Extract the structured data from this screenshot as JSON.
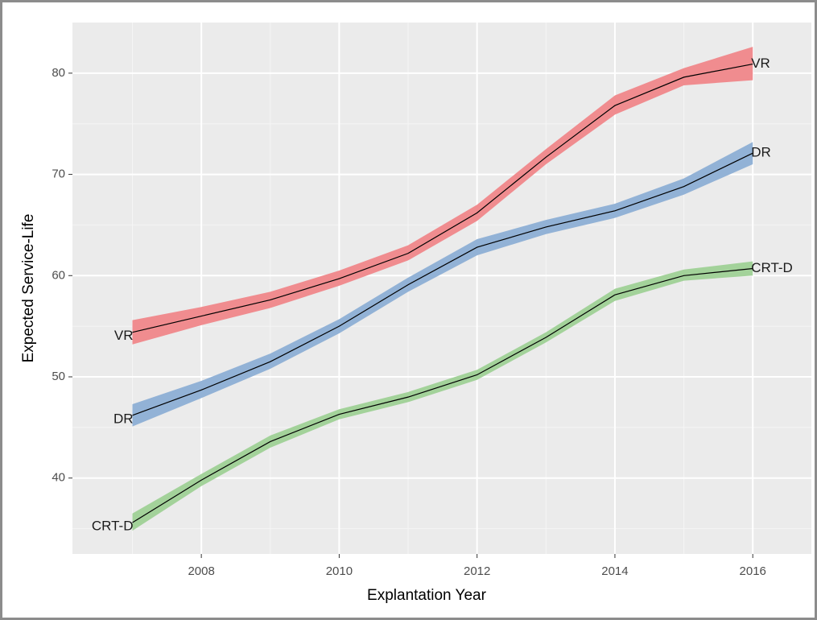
{
  "chart_data": {
    "type": "band-line",
    "x_label": "Explantation Year",
    "y_label": "Expected Service-Life",
    "x": [
      2007,
      2008,
      2009,
      2010,
      2011,
      2012,
      2013,
      2014,
      2015,
      2016
    ],
    "series": [
      {
        "name": "VR",
        "color": "#f08c8f",
        "line_color": "#000000",
        "values": [
          54.4,
          56.0,
          57.6,
          59.7,
          62.2,
          66.2,
          71.7,
          76.8,
          79.6,
          80.9
        ],
        "lower": [
          53.2,
          55.1,
          56.8,
          59.0,
          61.5,
          65.4,
          71.0,
          75.9,
          78.8,
          79.3
        ],
        "upper": [
          55.6,
          56.9,
          58.4,
          60.5,
          63.0,
          67.0,
          72.5,
          77.8,
          80.5,
          82.6
        ]
      },
      {
        "name": "DR",
        "color": "#92b2d6",
        "line_color": "#000000",
        "values": [
          46.2,
          48.7,
          51.5,
          55.0,
          59.1,
          62.8,
          64.8,
          66.4,
          68.8,
          72.1
        ],
        "lower": [
          45.1,
          47.9,
          50.8,
          54.3,
          58.4,
          62.0,
          64.1,
          65.7,
          68.0,
          71.0
        ],
        "upper": [
          47.3,
          49.6,
          52.3,
          55.7,
          59.8,
          63.6,
          65.5,
          67.1,
          69.6,
          73.2
        ]
      },
      {
        "name": "CRT-D",
        "color": "#a3d29a",
        "line_color": "#000000",
        "values": [
          35.6,
          39.8,
          43.6,
          46.3,
          48.0,
          50.2,
          53.9,
          58.1,
          60.0,
          60.7
        ],
        "lower": [
          34.8,
          39.2,
          43.0,
          45.8,
          47.5,
          49.7,
          53.4,
          57.5,
          59.5,
          60.0
        ],
        "upper": [
          36.5,
          40.4,
          44.2,
          46.8,
          48.5,
          50.7,
          54.4,
          58.7,
          60.6,
          61.4
        ]
      }
    ],
    "xlim": [
      2006.13,
      2016.85
    ],
    "xticks": [
      2008,
      2010,
      2012,
      2014,
      2016
    ],
    "ylim": [
      32.5,
      85
    ],
    "yticks": [
      40,
      50,
      60,
      70,
      80
    ],
    "grid": true,
    "panel_color": "#ebebeb"
  }
}
